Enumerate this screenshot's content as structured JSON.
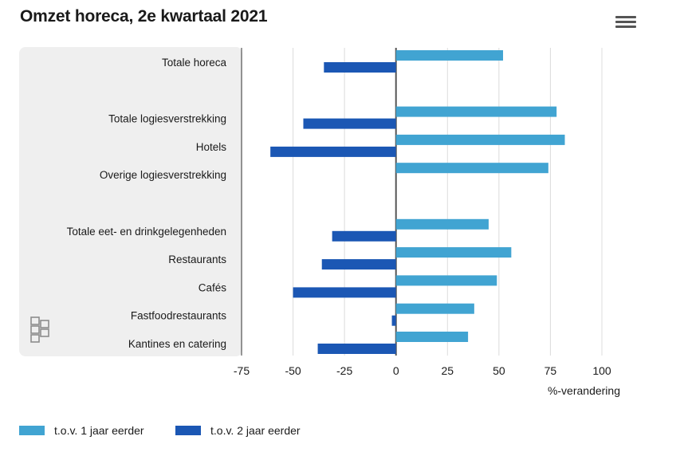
{
  "title": "Omzet horeca, 2e kwartaal 2021",
  "menu_icon": "hamburger-menu-icon",
  "logo_icon": "cbs-logo-icon",
  "colors": {
    "series1": "#41a4d2",
    "series2": "#1b57b4",
    "label_panel": "#efefef",
    "grid": "#dcdcdc"
  },
  "legend": {
    "items": [
      "t.o.v. 1 jaar eerder",
      "t.o.v. 2 jaar eerder"
    ]
  },
  "chart_data": {
    "type": "bar",
    "orientation": "horizontal",
    "title": "Omzet horeca, 2e kwartaal 2021",
    "xlabel": "%-verandering",
    "ylabel": "",
    "xlim": [
      -75,
      100
    ],
    "xticks": [
      -75,
      -50,
      -25,
      0,
      25,
      50,
      75,
      100
    ],
    "grid": true,
    "legend_position": "bottom-left",
    "categories": [
      "Totale horeca",
      "",
      "Totale logiesverstrekking",
      "Hotels",
      "Overige logiesverstrekking",
      "",
      "Totale eet- en drinkgelegenheden",
      "Restaurants",
      "Cafés",
      "Fastfoodrestaurants",
      "Kantines en catering"
    ],
    "series": [
      {
        "name": "t.o.v. 1 jaar eerder",
        "values": [
          52,
          null,
          78,
          82,
          74,
          null,
          45,
          56,
          49,
          38,
          35
        ]
      },
      {
        "name": "t.o.v. 2 jaar eerder",
        "values": [
          -35,
          null,
          -45,
          -61,
          null,
          null,
          -31,
          -36,
          -50,
          -2,
          -38
        ]
      }
    ]
  }
}
